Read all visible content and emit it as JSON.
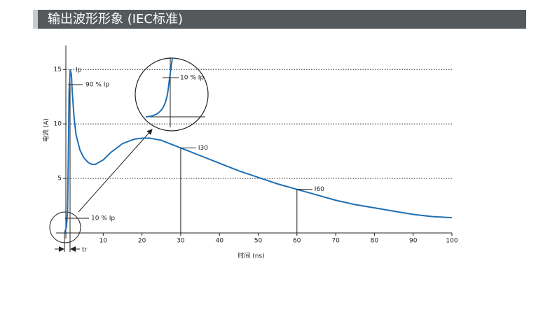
{
  "chart_data": {
    "type": "line",
    "title": "输出波形形象 (IEC标准)",
    "x_label": "时间 (ns)",
    "y_label": "电流 (A)",
    "x": [
      0,
      0.5,
      0.8,
      1,
      1.2,
      1.5,
      1.8,
      2,
      2.5,
      3,
      4,
      5,
      6,
      7,
      8,
      10,
      12,
      15,
      18,
      20,
      22,
      25,
      30,
      35,
      40,
      45,
      50,
      55,
      60,
      65,
      70,
      75,
      80,
      85,
      90,
      95,
      100
    ],
    "series": [
      {
        "name": "电流",
        "color": "#1f6fb5",
        "values": [
          0,
          0.5,
          2,
          7,
          13,
          15,
          14.5,
          13,
          10.5,
          9,
          7.6,
          6.9,
          6.5,
          6.3,
          6.3,
          6.7,
          7.4,
          8.2,
          8.6,
          8.7,
          8.7,
          8.5,
          7.8,
          7.1,
          6.4,
          5.7,
          5.1,
          4.5,
          4.0,
          3.5,
          3.0,
          2.6,
          2.3,
          2.0,
          1.7,
          1.5,
          1.4
        ]
      }
    ],
    "xlim": [
      0,
      100
    ],
    "xticks": [
      10,
      20,
      30,
      40,
      50,
      60,
      70,
      80,
      90,
      100
    ],
    "ylim": [
      0,
      17.2
    ],
    "yticks": [
      5,
      10,
      15
    ],
    "grid": true,
    "annotations": [
      "Ip",
      "90 % Ip",
      "10 % Ip",
      "10 % Ip",
      "I30",
      "I60",
      "tr"
    ]
  }
}
